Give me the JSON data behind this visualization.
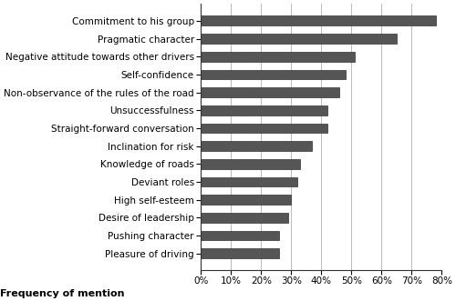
{
  "categories": [
    "Pleasure of driving",
    "Pushing character",
    "Desire of leadership",
    "High self-esteem",
    "Deviant roles",
    "Knowledge of roads",
    "Inclination for risk",
    "Straight-forward conversation",
    "Unsuccessfulness",
    "Non-observance of the rules of the road",
    "Self-confidence",
    "Negative attitude towards other drivers",
    "Pragmatic character",
    "Commitment to his group"
  ],
  "values": [
    0.26,
    0.26,
    0.29,
    0.3,
    0.32,
    0.33,
    0.37,
    0.42,
    0.42,
    0.46,
    0.48,
    0.51,
    0.65,
    0.78
  ],
  "bar_color": "#555555",
  "xlabel": "Frequency of mention",
  "xlim": [
    0,
    0.8
  ],
  "xticks": [
    0,
    0.1,
    0.2,
    0.3,
    0.4,
    0.5,
    0.6,
    0.7,
    0.8
  ],
  "xtick_labels": [
    "0%",
    "10%",
    "20%",
    "30%",
    "40%",
    "50%",
    "60%",
    "70%",
    "80%"
  ],
  "background_color": "#ffffff",
  "grid_color": "#bbbbbb",
  "label_fontsize": 7.5,
  "xlabel_fontsize": 8,
  "bar_height": 0.55
}
